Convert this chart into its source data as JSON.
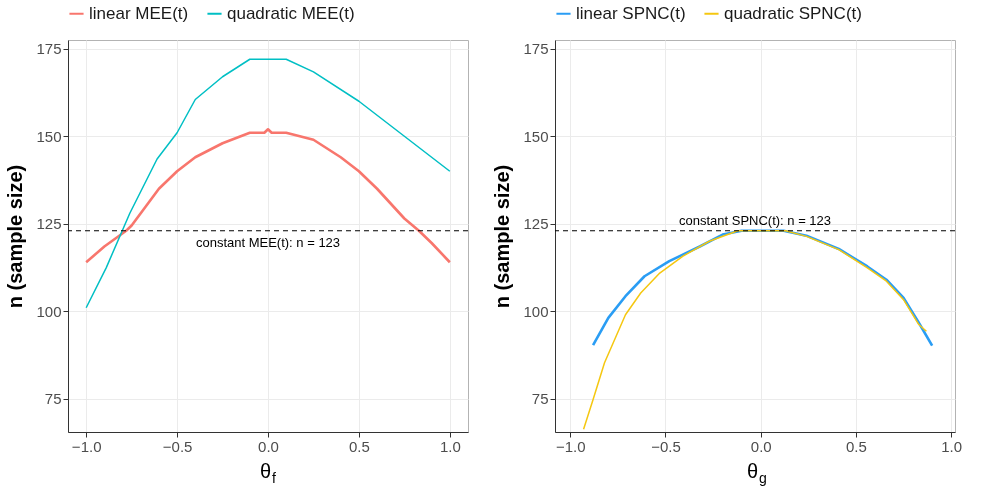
{
  "chart_data": [
    {
      "type": "line",
      "xlabel": "θ$_{f}$",
      "ylabel": "n (sample size)",
      "xlim": [
        -1.1,
        1.1
      ],
      "ylim": [
        65.5,
        177.5
      ],
      "xticks": [
        {
          "value": -1,
          "label": "−1.0"
        },
        {
          "value": -0.5,
          "label": "−0.5"
        },
        {
          "value": 0,
          "label": "0.0"
        },
        {
          "value": 0.5,
          "label": "0.5"
        },
        {
          "value": 1,
          "label": "1.0"
        }
      ],
      "yticks": [
        75,
        100,
        125,
        150,
        175
      ],
      "grid": true,
      "legend": "top",
      "series": [
        {
          "name": "linear MEE(t)",
          "color": "#f8766d",
          "x": [
            -1,
            -0.9,
            -0.78,
            -0.75,
            -0.6,
            -0.5,
            -0.4,
            -0.25,
            -0.1,
            -0.02,
            0,
            0.02,
            0.1,
            0.25,
            0.4,
            0.5,
            0.6,
            0.75,
            0.83,
            0.9,
            1
          ],
          "values": [
            114,
            118.5,
            123,
            124.5,
            135,
            140,
            144,
            148,
            151,
            151,
            152,
            151,
            151,
            149,
            144,
            140,
            135,
            126.5,
            123,
            119.5,
            114
          ]
        },
        {
          "name": "quadratic MEE(t)",
          "color": "#00bfc4",
          "x": [
            -1,
            -0.89,
            -0.76,
            -0.61,
            -0.5,
            -0.4,
            -0.25,
            -0.1,
            0,
            0.1,
            0.25,
            0.5,
            0.75,
            1
          ],
          "values": [
            101,
            112.4,
            128,
            143.5,
            151,
            160.5,
            167,
            172,
            172,
            172,
            168.4,
            160,
            150,
            140
          ]
        }
      ],
      "ref_lines": [
        {
          "axis": "y",
          "value": 123,
          "color": "#000000",
          "line_style": "dashed",
          "label": "constant MEE(t): n = 123"
        }
      ]
    },
    {
      "type": "line",
      "xlabel": "θ$_{g}$",
      "ylabel": "n (sample size)",
      "xlim": [
        -1.08,
        1.02
      ],
      "ylim": [
        65.5,
        177.5
      ],
      "xticks": [
        {
          "value": -1,
          "label": "−1.0"
        },
        {
          "value": -0.5,
          "label": "−0.5"
        },
        {
          "value": 0,
          "label": "0.0"
        },
        {
          "value": 0.5,
          "label": "0.5"
        },
        {
          "value": 1,
          "label": "1.0"
        }
      ],
      "yticks": [
        75,
        100,
        125,
        150,
        175
      ],
      "grid": true,
      "legend": "top",
      "series": [
        {
          "name": "linear SPNC(t)",
          "color": "#2a9df4",
          "x": [
            -0.88,
            -0.8,
            -0.71,
            -0.61,
            -0.48,
            -0.32,
            -0.2,
            -0.1,
            0,
            0.12,
            0.24,
            0.41,
            0.56,
            0.66,
            0.75,
            0.83,
            0.9
          ],
          "values": [
            90.3,
            98.1,
            104.3,
            110,
            114.3,
            118.5,
            121.9,
            123,
            123,
            123,
            121.6,
            117.8,
            112.8,
            109,
            103.8,
            96.7,
            90.2
          ]
        },
        {
          "name": "quadratic SPNC(t)",
          "color": "#f5c710",
          "x": [
            -0.93,
            -0.88,
            -0.82,
            -0.71,
            -0.63,
            -0.53,
            -0.41,
            -0.27,
            -0.12,
            0,
            0.13,
            0.24,
            0.41,
            0.56,
            0.66,
            0.75,
            0.83,
            0.87
          ],
          "values": [
            66.3,
            74.8,
            85.3,
            99,
            105.2,
            110.9,
            115.7,
            120,
            123,
            123,
            123,
            121.4,
            117.6,
            112.4,
            108.6,
            103.3,
            96.2,
            94.3
          ]
        }
      ],
      "ref_lines": [
        {
          "axis": "y",
          "value": 123,
          "color": "#000000",
          "line_style": "dashed",
          "label": "constant SPNC(t): n = 123"
        }
      ]
    }
  ]
}
